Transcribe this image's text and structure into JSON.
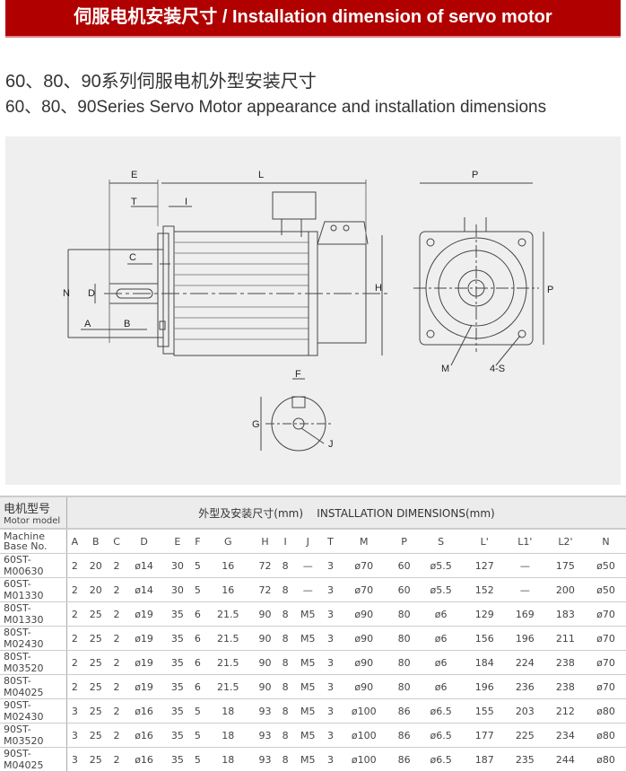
{
  "banner": "伺服电机安装尺寸 / Installation dimension of servo motor",
  "title_cn": "60、80、90系列伺服电机外型安装尺寸",
  "title_en": "60、80、90Series Servo Motor appearance and installation dimensions",
  "drawing_labels": {
    "E": "E",
    "L": "L",
    "T": "T",
    "I": "I",
    "C": "C",
    "N": "N",
    "D": "D",
    "A": "A",
    "B": "B",
    "H": "H",
    "P_top": "P",
    "P_side": "P",
    "M": "M",
    "S": "4-S",
    "F": "F",
    "G": "G",
    "J": "J"
  },
  "table": {
    "model_cn": "电机型号",
    "model_en": "Motor model",
    "group_header": "外型及安装尺寸(mm)    INSTALLATION DIMENSIONS(mm)",
    "base_label": "Machine Base No.",
    "columns": [
      "A",
      "B",
      "C",
      "D",
      "E",
      "F",
      "G",
      "H",
      "I",
      "J",
      "T",
      "M",
      "P",
      "S",
      "L'",
      "L1'",
      "L2'",
      "N"
    ],
    "rows": [
      [
        "60ST-M00630",
        "2",
        "20",
        "2",
        "ø14",
        "30",
        "5",
        "16",
        "72",
        "8",
        "—",
        "3",
        "ø70",
        "60",
        "ø5.5",
        "127",
        "—",
        "175",
        "ø50"
      ],
      [
        "60ST-M01330",
        "2",
        "20",
        "2",
        "ø14",
        "30",
        "5",
        "16",
        "72",
        "8",
        "—",
        "3",
        "ø70",
        "60",
        "ø5.5",
        "152",
        "—",
        "200",
        "ø50"
      ],
      [
        "80ST-M01330",
        "2",
        "25",
        "2",
        "ø19",
        "35",
        "6",
        "21.5",
        "90",
        "8",
        "M5",
        "3",
        "ø90",
        "80",
        "ø6",
        "129",
        "169",
        "183",
        "ø70"
      ],
      [
        "80ST-M02430",
        "2",
        "25",
        "2",
        "ø19",
        "35",
        "6",
        "21.5",
        "90",
        "8",
        "M5",
        "3",
        "ø90",
        "80",
        "ø6",
        "156",
        "196",
        "211",
        "ø70"
      ],
      [
        "80ST-M03520",
        "2",
        "25",
        "2",
        "ø19",
        "35",
        "6",
        "21.5",
        "90",
        "8",
        "M5",
        "3",
        "ø90",
        "80",
        "ø6",
        "184",
        "224",
        "238",
        "ø70"
      ],
      [
        "80ST-M04025",
        "2",
        "25",
        "2",
        "ø19",
        "35",
        "6",
        "21.5",
        "90",
        "8",
        "M5",
        "3",
        "ø90",
        "80",
        "ø6",
        "196",
        "236",
        "238",
        "ø70"
      ],
      [
        "90ST-M02430",
        "3",
        "25",
        "2",
        "ø16",
        "35",
        "5",
        "18",
        "93",
        "8",
        "M5",
        "3",
        "ø100",
        "86",
        "ø6.5",
        "155",
        "203",
        "212",
        "ø80"
      ],
      [
        "90ST-M03520",
        "3",
        "25",
        "2",
        "ø16",
        "35",
        "5",
        "18",
        "93",
        "8",
        "M5",
        "3",
        "ø100",
        "86",
        "ø6.5",
        "177",
        "225",
        "234",
        "ø80"
      ],
      [
        "90ST-M04025",
        "3",
        "25",
        "2",
        "ø16",
        "35",
        "5",
        "18",
        "93",
        "8",
        "M5",
        "3",
        "ø100",
        "86",
        "ø6.5",
        "187",
        "235",
        "244",
        "ø80"
      ]
    ]
  }
}
